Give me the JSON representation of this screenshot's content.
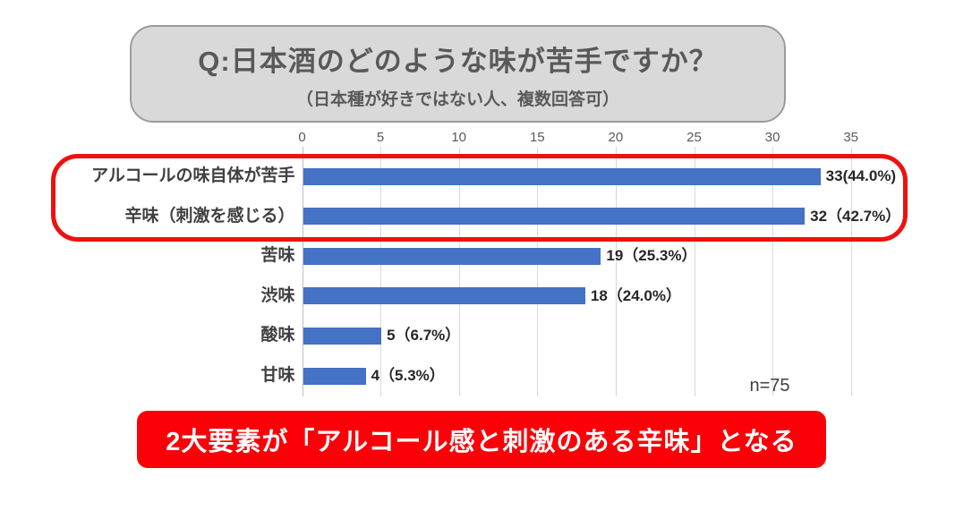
{
  "title_box": {
    "title": "Q:日本酒のどのような味が苦手ですか？",
    "subtitle": "（日本種が好きではない人、複数回答可）"
  },
  "chart_data": {
    "type": "bar",
    "orientation": "horizontal",
    "title": "Q:日本酒のどのような味が苦手ですか？",
    "categories": [
      "アルコールの味自体が苦手",
      "辛味（刺激を感じる）",
      "苦味",
      "渋味",
      "酸味",
      "甘味"
    ],
    "values": [
      33,
      32,
      19,
      18,
      5,
      4
    ],
    "value_labels": [
      "33(44.0%)",
      "32（42.7%）",
      "19（25.3%）",
      "18（24.0%）",
      "5（6.7%）",
      "4（5.3%）"
    ],
    "xticks": [
      0,
      5,
      10,
      15,
      20,
      25,
      30,
      35
    ],
    "xlim": [
      0,
      35.7
    ],
    "grid": true,
    "bar_color": "#4472c4",
    "highlighted_rows": [
      0,
      1
    ],
    "highlight_color": "#ee1111",
    "sample_size": "n=75"
  },
  "banner": {
    "text": "2大要素が「アルコール感と刺激のある辛味」となる",
    "bg": "#fb0007",
    "fg": "#ffffff"
  },
  "colors": {
    "bar": "#4472c4",
    "grid": "#d9d9d9",
    "axis_text": "#595959",
    "title_box_fill": "#d9d9d9",
    "title_box_border": "#9b9b9b",
    "highlight_red": "#ee1111",
    "banner_red": "#fb0007"
  }
}
